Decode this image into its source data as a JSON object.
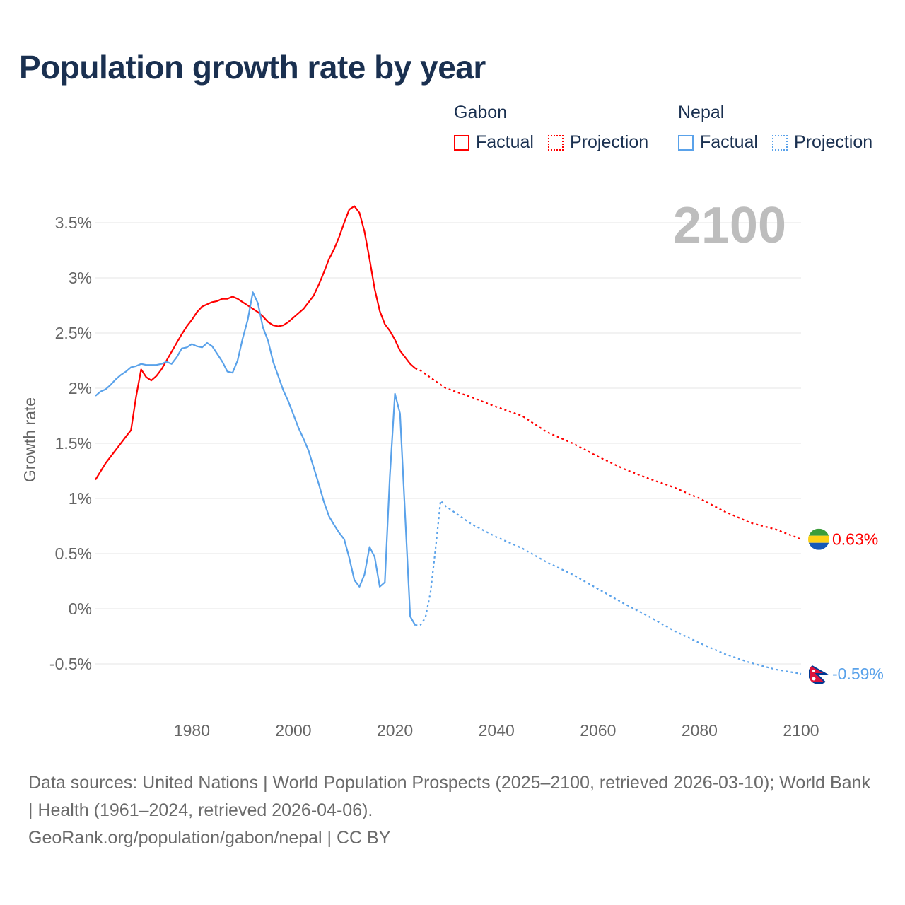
{
  "title": "Population growth rate by year",
  "legend": {
    "groups": [
      {
        "name": "Gabon",
        "color": "#ff0000",
        "factual_label": "Factual",
        "projection_label": "Projection"
      },
      {
        "name": "Nepal",
        "color": "#5aa2ea",
        "factual_label": "Factual",
        "projection_label": "Projection"
      }
    ]
  },
  "year_overlay": "2100",
  "footer": {
    "sources": "Data sources: United Nations | World Population Prospects (2025–2100, retrieved 2026-03-10); World Bank | Health (1961–2024, retrieved 2026-04-06).",
    "credit": "GeoRank.org/population/gabon/nepal | CC BY"
  },
  "chart_data": {
    "type": "line",
    "title": "Population growth rate by year",
    "xlabel": "",
    "ylabel": "Growth rate",
    "xlim": [
      1961,
      2100
    ],
    "ylim": [
      -0.75,
      3.8
    ],
    "x_ticks": [
      1980,
      2000,
      2020,
      2040,
      2060,
      2080,
      2100
    ],
    "y_ticks": [
      -0.5,
      0,
      0.5,
      1,
      1.5,
      2,
      2.5,
      3,
      3.5
    ],
    "y_tick_labels": [
      "-0.5%",
      "0%",
      "0.5%",
      "1%",
      "1.5%",
      "2%",
      "2.5%",
      "3%",
      "3.5%"
    ],
    "grid": true,
    "legend_position": "top-right",
    "series": [
      {
        "name": "Gabon",
        "color": "#ff0000",
        "end_label": "0.63%",
        "factual": {
          "x": [
            1961,
            1963,
            1965,
            1967,
            1968,
            1969,
            1970,
            1971,
            1972,
            1973,
            1974,
            1975,
            1976,
            1977,
            1978,
            1979,
            1980,
            1981,
            1982,
            1983,
            1984,
            1985,
            1986,
            1987,
            1988,
            1989,
            1990,
            1991,
            1992,
            1993,
            1994,
            1995,
            1996,
            1997,
            1998,
            1999,
            2000,
            2001,
            2002,
            2003,
            2004,
            2005,
            2006,
            2007,
            2008,
            2009,
            2010,
            2011,
            2012,
            2013,
            2014,
            2015,
            2016,
            2017,
            2018,
            2019,
            2020,
            2021,
            2022,
            2023,
            2024
          ],
          "y": [
            1.17,
            1.32,
            1.44,
            1.56,
            1.62,
            1.92,
            2.17,
            2.1,
            2.07,
            2.11,
            2.17,
            2.25,
            2.33,
            2.41,
            2.49,
            2.56,
            2.62,
            2.69,
            2.74,
            2.76,
            2.78,
            2.79,
            2.81,
            2.81,
            2.83,
            2.81,
            2.78,
            2.75,
            2.72,
            2.69,
            2.65,
            2.6,
            2.57,
            2.56,
            2.57,
            2.6,
            2.64,
            2.68,
            2.72,
            2.78,
            2.84,
            2.94,
            3.05,
            3.17,
            3.26,
            3.37,
            3.5,
            3.62,
            3.65,
            3.59,
            3.42,
            3.17,
            2.9,
            2.7,
            2.58,
            2.52,
            2.44,
            2.34,
            2.28,
            2.22,
            2.18
          ]
        },
        "projection": {
          "x": [
            2024,
            2025,
            2030,
            2035,
            2040,
            2045,
            2050,
            2055,
            2060,
            2065,
            2070,
            2075,
            2080,
            2085,
            2090,
            2095,
            2100
          ],
          "y": [
            2.18,
            2.16,
            2.0,
            1.92,
            1.83,
            1.75,
            1.6,
            1.5,
            1.38,
            1.27,
            1.18,
            1.1,
            1.0,
            0.88,
            0.78,
            0.72,
            0.63
          ]
        }
      },
      {
        "name": "Nepal",
        "color": "#5aa2ea",
        "end_label": "-0.59%",
        "factual": {
          "x": [
            1961,
            1962,
            1963,
            1964,
            1965,
            1966,
            1967,
            1968,
            1969,
            1970,
            1971,
            1972,
            1973,
            1974,
            1975,
            1976,
            1977,
            1978,
            1979,
            1980,
            1981,
            1982,
            1983,
            1984,
            1985,
            1986,
            1987,
            1988,
            1989,
            1990,
            1991,
            1992,
            1993,
            1994,
            1995,
            1996,
            1997,
            1998,
            1999,
            2000,
            2001,
            2002,
            2003,
            2004,
            2005,
            2006,
            2007,
            2008,
            2009,
            2010,
            2011,
            2012,
            2013,
            2014,
            2015,
            2016,
            2017,
            2018,
            2019,
            2020,
            2021,
            2022,
            2023,
            2024
          ],
          "y": [
            1.93,
            1.97,
            1.99,
            2.03,
            2.08,
            2.12,
            2.15,
            2.19,
            2.2,
            2.22,
            2.21,
            2.21,
            2.21,
            2.22,
            2.24,
            2.22,
            2.28,
            2.36,
            2.37,
            2.4,
            2.38,
            2.37,
            2.41,
            2.38,
            2.31,
            2.24,
            2.15,
            2.14,
            2.25,
            2.45,
            2.62,
            2.87,
            2.77,
            2.55,
            2.43,
            2.24,
            2.11,
            1.98,
            1.88,
            1.76,
            1.64,
            1.54,
            1.43,
            1.28,
            1.13,
            0.97,
            0.84,
            0.76,
            0.69,
            0.63,
            0.46,
            0.26,
            0.2,
            0.31,
            0.56,
            0.47,
            0.2,
            0.24,
            1.2,
            1.95,
            1.77,
            0.85,
            -0.07,
            -0.15
          ]
        },
        "projection": {
          "x": [
            2024,
            2025,
            2026,
            2027,
            2028,
            2029,
            2030,
            2035,
            2040,
            2045,
            2050,
            2055,
            2060,
            2065,
            2070,
            2075,
            2080,
            2085,
            2090,
            2095,
            2100
          ],
          "y": [
            -0.15,
            -0.15,
            -0.08,
            0.15,
            0.55,
            0.98,
            0.93,
            0.77,
            0.65,
            0.55,
            0.42,
            0.31,
            0.18,
            0.05,
            -0.07,
            -0.2,
            -0.31,
            -0.41,
            -0.49,
            -0.55,
            -0.59
          ]
        }
      }
    ]
  }
}
